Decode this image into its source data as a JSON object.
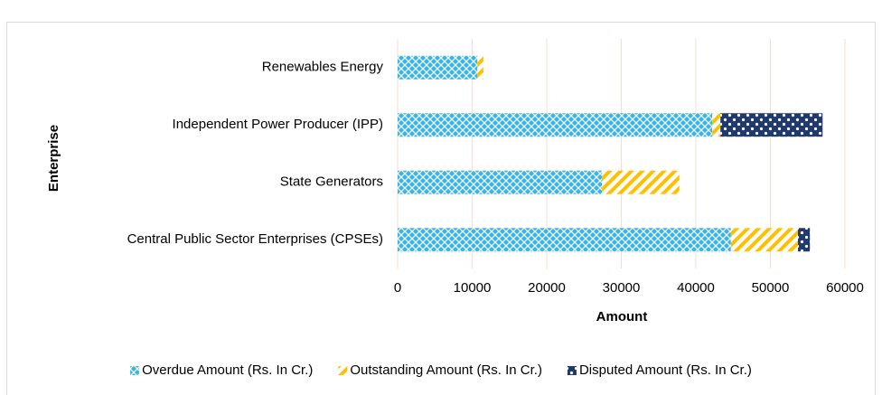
{
  "chart_data": {
    "type": "stacked_barh",
    "x_label": "Amount",
    "y_label": "Enterprise",
    "categories": [
      "Renewables Energy",
      "Independent Power Producer (IPP)",
      "State Generators",
      "Central Public Sector Enterprises (CPSEs)"
    ],
    "series": [
      {
        "name": "Overdue Amount (Rs. In Cr.)",
        "color": "#33b5e8",
        "pattern": "cross",
        "values": [
          10700,
          42200,
          27400,
          44700
        ]
      },
      {
        "name": "Outstanding Amount (Rs. In Cr.)",
        "color": "#ffc000",
        "pattern": "stripes",
        "values": [
          800,
          1100,
          10400,
          9000
        ]
      },
      {
        "name": "Disputed Amount (Rs. In Cr.)",
        "color": "#1f3a6b",
        "pattern": "checker",
        "values": [
          0,
          13700,
          0,
          1600
        ]
      }
    ],
    "xlim": [
      0,
      60000
    ],
    "xticks": [
      0,
      10000,
      20000,
      30000,
      40000,
      50000,
      60000
    ],
    "grid": true,
    "grid_color": "#f9dccb",
    "legend": "bottom"
  }
}
